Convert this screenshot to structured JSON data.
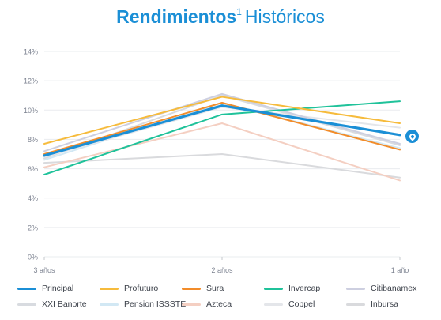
{
  "title": {
    "bold": "Rendimientos",
    "sup": "1",
    "rest": "Históricos"
  },
  "chart_data": {
    "type": "line",
    "categories": [
      "3 años",
      "2 años",
      "1 año"
    ],
    "yticks": [
      "0%",
      "2%",
      "4%",
      "6%",
      "8%",
      "10%",
      "12%",
      "14%"
    ],
    "ylim": [
      0,
      14
    ],
    "grid": true,
    "legend_position": "bottom",
    "series": [
      {
        "name": "XXI Banorte",
        "color": "#d8dbe0",
        "values": [
          6.7,
          11.0,
          7.6
        ]
      },
      {
        "name": "Pension ISSSTE",
        "color": "#d2e8f4",
        "values": [
          6.6,
          10.5,
          7.4
        ]
      },
      {
        "name": "Coppel",
        "color": "#e4e6ea",
        "values": [
          6.8,
          10.2,
          8.8
        ]
      },
      {
        "name": "Citibanamex",
        "color": "#cdcfe0",
        "values": [
          7.2,
          11.1,
          7.7
        ]
      },
      {
        "name": "Inbursa",
        "color": "#d9dadd",
        "values": [
          6.4,
          7.0,
          5.4
        ]
      },
      {
        "name": "Azteca",
        "color": "#f4cfc2",
        "values": [
          6.1,
          9.1,
          5.2
        ]
      },
      {
        "name": "Invercap",
        "color": "#1fc29a",
        "values": [
          5.6,
          9.7,
          10.6
        ]
      },
      {
        "name": "Profuturo",
        "color": "#f6bb3c",
        "values": [
          7.7,
          10.9,
          9.1
        ]
      },
      {
        "name": "Sura",
        "color": "#f28c2a",
        "values": [
          7.0,
          10.5,
          7.3
        ]
      },
      {
        "name": "Principal",
        "color": "#1b8fd6",
        "values": [
          6.9,
          10.3,
          8.3
        ]
      }
    ]
  },
  "legend": [
    [
      {
        "label": "Principal",
        "color": "#1b8fd6"
      },
      {
        "label": "Profuturo",
        "color": "#f6bb3c"
      },
      {
        "label": "Sura",
        "color": "#f28c2a"
      },
      {
        "label": "Invercap",
        "color": "#1fc29a"
      },
      {
        "label": "Citibanamex",
        "color": "#cdcfe0"
      }
    ],
    [
      {
        "label": "XXI Banorte",
        "color": "#d8dbe0"
      },
      {
        "label": "Pension ISSSTE",
        "color": "#d2e8f4"
      },
      {
        "label": "Azteca",
        "color": "#f4cfc2"
      },
      {
        "label": "Coppel",
        "color": "#e4e6ea"
      },
      {
        "label": "Inbursa",
        "color": "#d9dadd"
      }
    ]
  ],
  "icons": {
    "end_badge": "principal-logo-icon"
  }
}
